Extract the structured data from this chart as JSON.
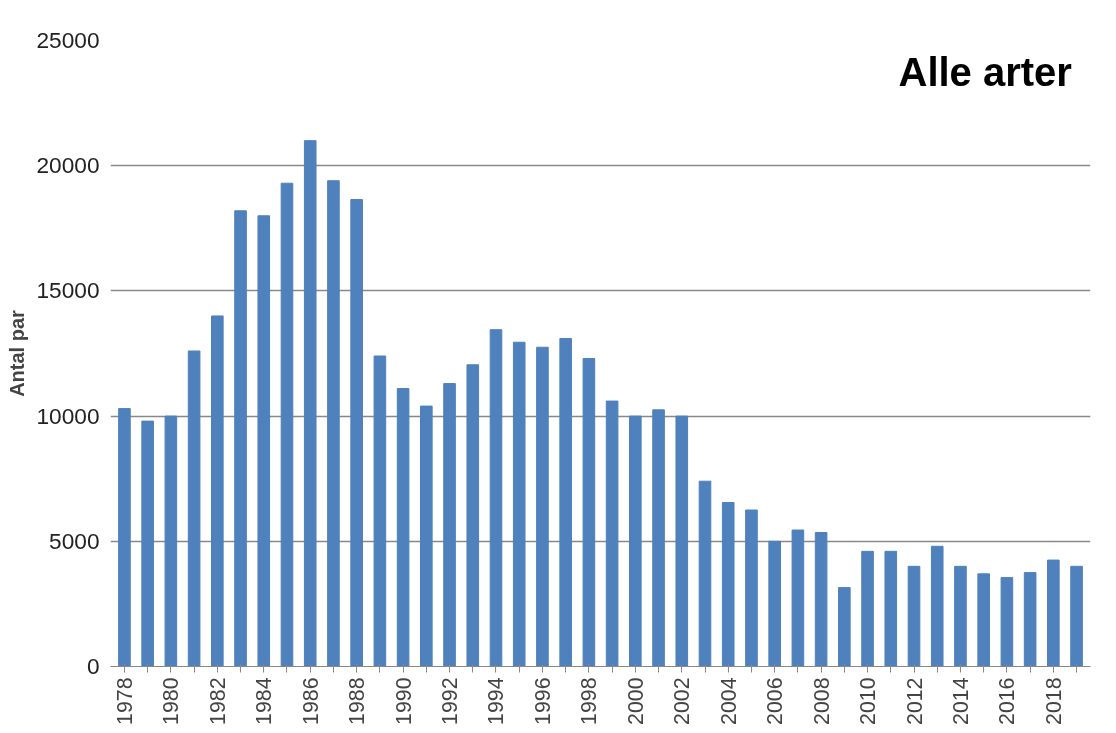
{
  "chart_data": {
    "type": "bar",
    "title": "Alle arter",
    "ylabel": "Antal par",
    "categories": [
      "1978",
      null,
      "1980",
      null,
      "1982",
      null,
      "1984",
      null,
      "1986",
      null,
      "1988",
      null,
      "1990",
      null,
      "1992",
      null,
      "1994",
      null,
      "1996",
      null,
      "1998",
      null,
      "2000",
      null,
      "2002",
      null,
      "2004",
      null,
      "2006",
      null,
      "2008",
      null,
      "2010",
      null,
      "2012",
      null,
      "2014",
      null,
      "2016",
      null,
      "2018",
      null
    ],
    "values": [
      10300,
      9800,
      10000,
      12600,
      14000,
      18200,
      18000,
      19300,
      21000,
      19400,
      18650,
      12400,
      11100,
      10400,
      11300,
      12050,
      13450,
      12950,
      12750,
      13100,
      12300,
      10600,
      10000,
      10250,
      10000,
      7400,
      6550,
      6250,
      5000,
      5450,
      5350,
      3150,
      4600,
      4600,
      4000,
      4800,
      4000,
      3700,
      3550,
      3750,
      4250,
      4000
    ],
    "color": "#4f81bd",
    "ylim": [
      0,
      25000
    ],
    "yticks": [
      0,
      5000,
      10000,
      15000,
      20000,
      25000
    ],
    "grid": "y"
  }
}
